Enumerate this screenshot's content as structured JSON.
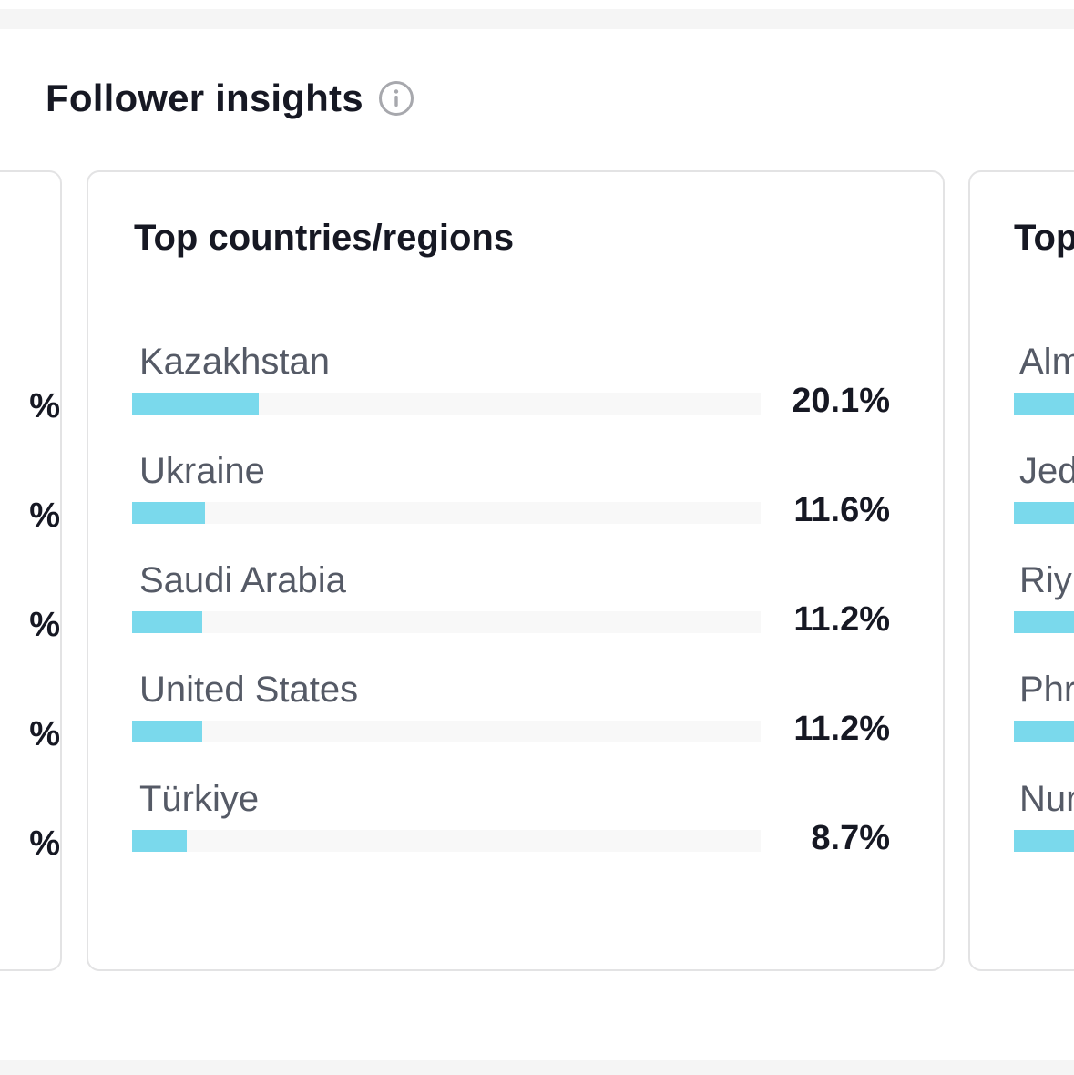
{
  "header": {
    "title": "Follower insights",
    "info_icon": "info-circle-icon"
  },
  "left_card": {
    "percent_fragments": [
      "%",
      "%",
      "%",
      "%",
      "%"
    ]
  },
  "countries_card": {
    "title": "Top countries/regions",
    "items": [
      {
        "label": "Kazakhstan",
        "value": "20.1%",
        "fraction": 0.201
      },
      {
        "label": "Ukraine",
        "value": "11.6%",
        "fraction": 0.116
      },
      {
        "label": "Saudi Arabia",
        "value": "11.2%",
        "fraction": 0.112
      },
      {
        "label": "United States",
        "value": "11.2%",
        "fraction": 0.112
      },
      {
        "label": "Türkiye",
        "value": "8.7%",
        "fraction": 0.087
      }
    ]
  },
  "right_card": {
    "title": "Top",
    "items": [
      {
        "label": "Alm"
      },
      {
        "label": "Jed"
      },
      {
        "label": "Riy"
      },
      {
        "label": "Phr"
      },
      {
        "label": "Nur"
      }
    ]
  },
  "colors": {
    "bar_fill": "#7ad9ec",
    "bar_track": "#f8f8f8",
    "text_primary": "#161823",
    "text_secondary": "#555a66",
    "card_border": "#e3e3e4"
  }
}
